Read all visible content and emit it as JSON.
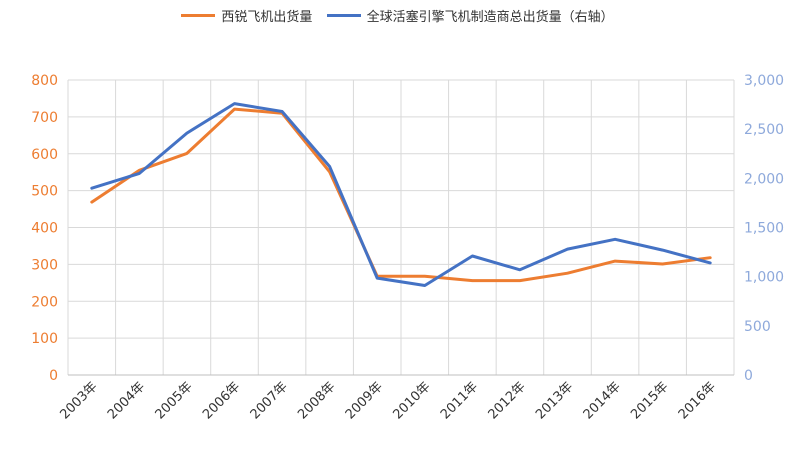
{
  "chart_data": {
    "type": "line",
    "categories": [
      "2003年",
      "2004年",
      "2005年",
      "2006年",
      "2007年",
      "2008年",
      "2009年",
      "2010年",
      "2011年",
      "2012年",
      "2013年",
      "2014年",
      "2015年",
      "2016年"
    ],
    "series": [
      {
        "name": "西锐飞机出货量",
        "axis": "left",
        "color": "#ED7D31",
        "values": [
          469,
          555,
          601,
          721,
          710,
          551,
          268,
          268,
          256,
          256,
          276,
          309,
          301,
          318
        ]
      },
      {
        "name": "全球活塞引擎飞机制造商总出货量（右轴）",
        "axis": "right",
        "color": "#4472C4",
        "values": [
          1900,
          2050,
          2460,
          2760,
          2680,
          2120,
          985,
          910,
          1210,
          1070,
          1280,
          1380,
          1270,
          1140
        ]
      }
    ],
    "y_left": {
      "min": 0,
      "max": 800,
      "step": 100,
      "ticks": [
        "0",
        "100",
        "200",
        "300",
        "400",
        "500",
        "600",
        "700",
        "800"
      ],
      "color": "#ED7D31"
    },
    "y_right": {
      "min": 0,
      "max": 3000,
      "step": 500,
      "ticks": [
        "0",
        "500",
        "1,000",
        "1,500",
        "2,000",
        "2,500",
        "3,000"
      ],
      "color": "#8EA9DB"
    },
    "grid": true,
    "legend_position": "top"
  }
}
